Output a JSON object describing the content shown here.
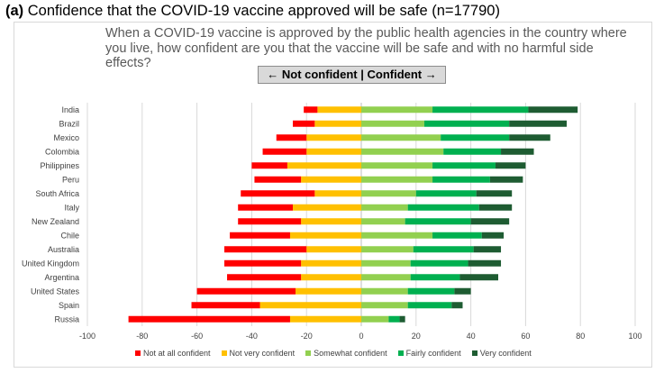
{
  "panel": {
    "label": "(a)",
    "title": "Confidence that the COVID-19 vaccine approved will be safe (n=17790)"
  },
  "question": "When a COVID-19 vaccine is approved by the public health agencies in the country where you live, how confident are you that the vaccine will be safe and with no harmful side effects?",
  "banner": "← Not confident | Confident →",
  "chart_data": {
    "type": "bar",
    "orientation": "horizontal",
    "stacked": "diverging",
    "title": "Confidence that the COVID-19 vaccine approved will be safe (n=17790)",
    "categories": [
      "India",
      "Brazil",
      "Mexico",
      "Colombia",
      "Philippines",
      "Peru",
      "South Africa",
      "Italy",
      "New Zealand",
      "Chile",
      "Australia",
      "United Kingdom",
      "Argentina",
      "United States",
      "Spain",
      "Russia"
    ],
    "xlim": [
      -100,
      100
    ],
    "xticks": [
      -100,
      -80,
      -60,
      -40,
      -20,
      0,
      20,
      40,
      60,
      80,
      100
    ],
    "grid": true,
    "legend_position": "bottom",
    "series": [
      {
        "name": "Not at all confident",
        "color": "#ff0000",
        "side": "negative",
        "values": [
          5,
          8,
          11,
          16,
          13,
          17,
          27,
          20,
          23,
          22,
          30,
          28,
          27,
          36,
          25,
          59
        ]
      },
      {
        "name": "Not very confident",
        "color": "#ffc000",
        "side": "negative",
        "values": [
          16,
          17,
          20,
          20,
          27,
          22,
          17,
          25,
          22,
          26,
          20,
          22,
          22,
          24,
          37,
          26
        ]
      },
      {
        "name": "Somewhat confident",
        "color": "#92d050",
        "side": "positive",
        "values": [
          26,
          23,
          29,
          30,
          26,
          26,
          20,
          17,
          16,
          26,
          19,
          18,
          18,
          17,
          17,
          10
        ]
      },
      {
        "name": "Fairly confident",
        "color": "#00b050",
        "side": "positive",
        "values": [
          35,
          31,
          25,
          21,
          23,
          21,
          22,
          26,
          24,
          18,
          22,
          21,
          18,
          17,
          16,
          4
        ]
      },
      {
        "name": "Very confident",
        "color": "#1e5c32",
        "side": "positive",
        "values": [
          18,
          21,
          15,
          12,
          11,
          12,
          13,
          12,
          14,
          8,
          10,
          12,
          14,
          6,
          4,
          2
        ]
      }
    ]
  }
}
